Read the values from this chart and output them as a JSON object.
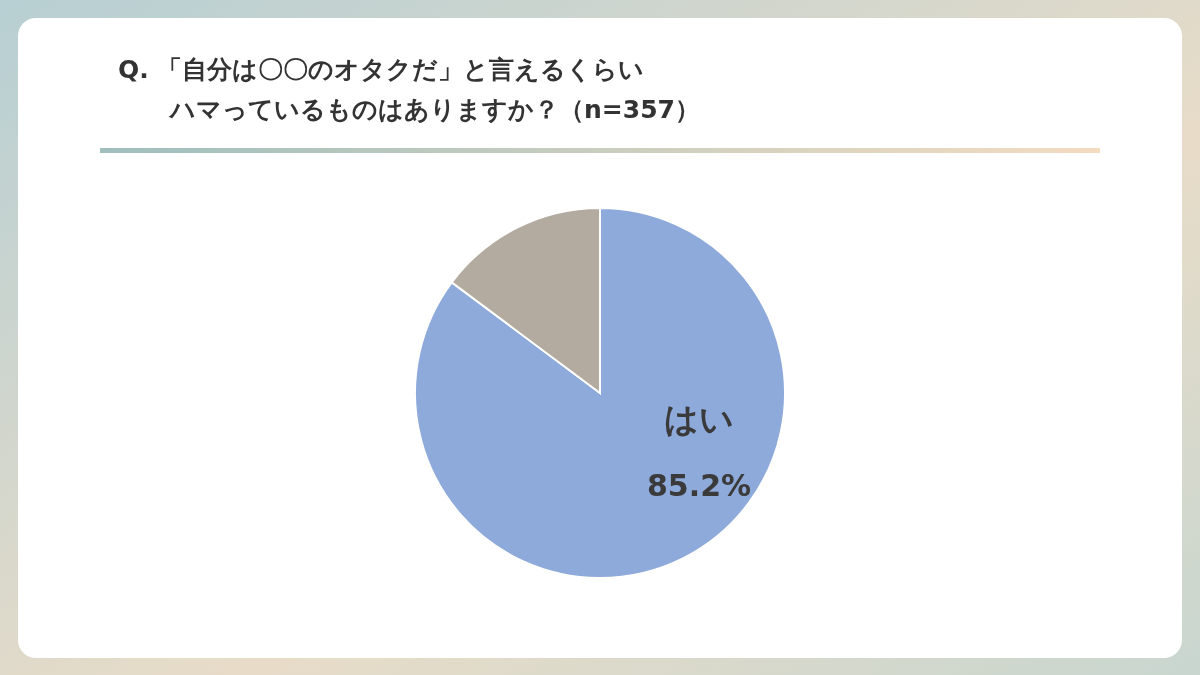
{
  "chart_data": {
    "type": "pie",
    "title": "Q. 「自分は〇〇のオタクだ」と言えるくらいハマっているものはありますか？（n=357）",
    "categories": [
      "はい",
      null
    ],
    "values": [
      85.2,
      14.8
    ],
    "colors": [
      "#8eaadb",
      "#b3aba0"
    ],
    "value_labels": [
      "85.2%",
      null
    ],
    "legend": false
  }
}
